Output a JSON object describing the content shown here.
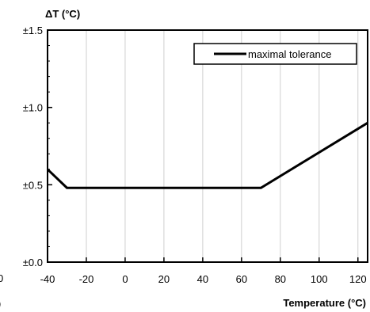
{
  "chart_data": {
    "type": "line",
    "ylabel": "ΔT (°C)",
    "xlabel": "Temperature (°C)",
    "xlim": [
      -40,
      125
    ],
    "ylim": [
      0,
      1.5
    ],
    "x_ticks": [
      -40,
      -20,
      0,
      20,
      40,
      60,
      80,
      100,
      120
    ],
    "x_tick_labels": [
      "-40",
      "-20",
      "0",
      "20",
      "40",
      "60",
      "80",
      "100",
      "120"
    ],
    "y_ticks": [
      0,
      0.5,
      1.0,
      1.5
    ],
    "y_tick_labels": [
      "±0.0",
      "±0.5",
      "±1.0",
      "±1.5"
    ],
    "grid": "vertical",
    "legend_position": "top-right",
    "series": [
      {
        "name": "maximal tolerance",
        "color": "#000000",
        "points": [
          {
            "x": -40,
            "y": 0.6
          },
          {
            "x": -30,
            "y": 0.48
          },
          {
            "x": 70,
            "y": 0.48
          },
          {
            "x": 125,
            "y": 0.9
          }
        ]
      }
    ],
    "stray_labels": [
      {
        "text": "0",
        "where": "bottom-left-edge"
      },
      {
        "text": ")",
        "where": "bottom-left-edge"
      }
    ]
  }
}
